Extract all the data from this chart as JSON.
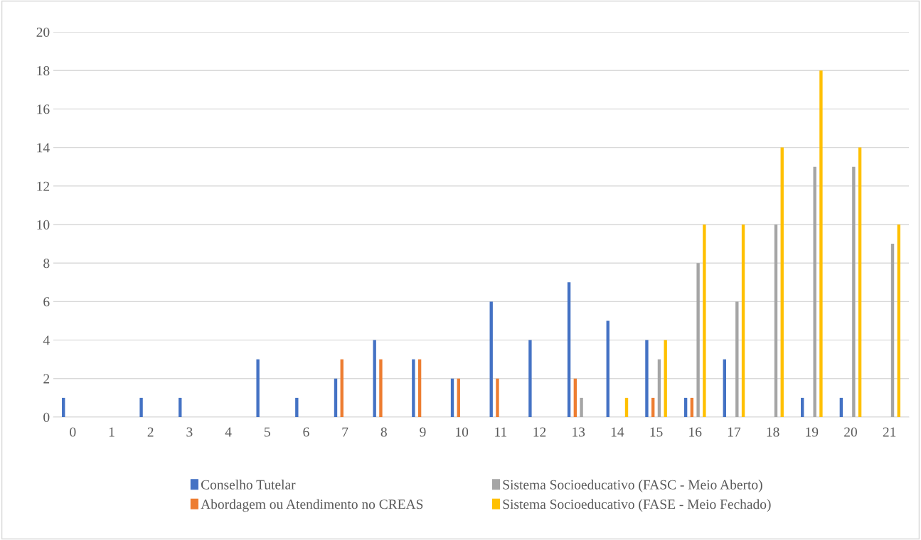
{
  "chart_data": {
    "type": "bar",
    "categories": [
      "0",
      "1",
      "2",
      "3",
      "4",
      "5",
      "6",
      "7",
      "8",
      "9",
      "10",
      "11",
      "12",
      "13",
      "14",
      "15",
      "16",
      "17",
      "18",
      "19",
      "20",
      "21"
    ],
    "series": [
      {
        "name": "Conselho Tutelar",
        "color": "#4472c4",
        "values": [
          1,
          0,
          1,
          1,
          0,
          3,
          1,
          2,
          4,
          3,
          2,
          6,
          4,
          7,
          5,
          4,
          1,
          3,
          0,
          1,
          1,
          0
        ]
      },
      {
        "name": "Abordagem ou Atendimento no CREAS",
        "color": "#ed7d31",
        "values": [
          0,
          0,
          0,
          0,
          0,
          0,
          0,
          3,
          3,
          3,
          2,
          2,
          0,
          2,
          0,
          1,
          1,
          0,
          0,
          0,
          0,
          0
        ]
      },
      {
        "name": "Sistema Socioeducativo (FASC - Meio Aberto)",
        "color": "#a5a5a5",
        "values": [
          0,
          0,
          0,
          0,
          0,
          0,
          0,
          0,
          0,
          0,
          0,
          0,
          0,
          1,
          0,
          3,
          8,
          6,
          10,
          13,
          13,
          9
        ]
      },
      {
        "name": "Sistema Socioeducativo (FASE - Meio Fechado)",
        "color": "#ffc000",
        "values": [
          0,
          0,
          0,
          0,
          0,
          0,
          0,
          0,
          0,
          0,
          0,
          0,
          0,
          0,
          1,
          4,
          10,
          10,
          14,
          18,
          14,
          10
        ]
      }
    ],
    "ylim": [
      0,
      20
    ],
    "yticks": [
      0,
      2,
      4,
      6,
      8,
      10,
      12,
      14,
      16,
      18,
      20
    ],
    "grid": "y",
    "legend": "bottom"
  }
}
